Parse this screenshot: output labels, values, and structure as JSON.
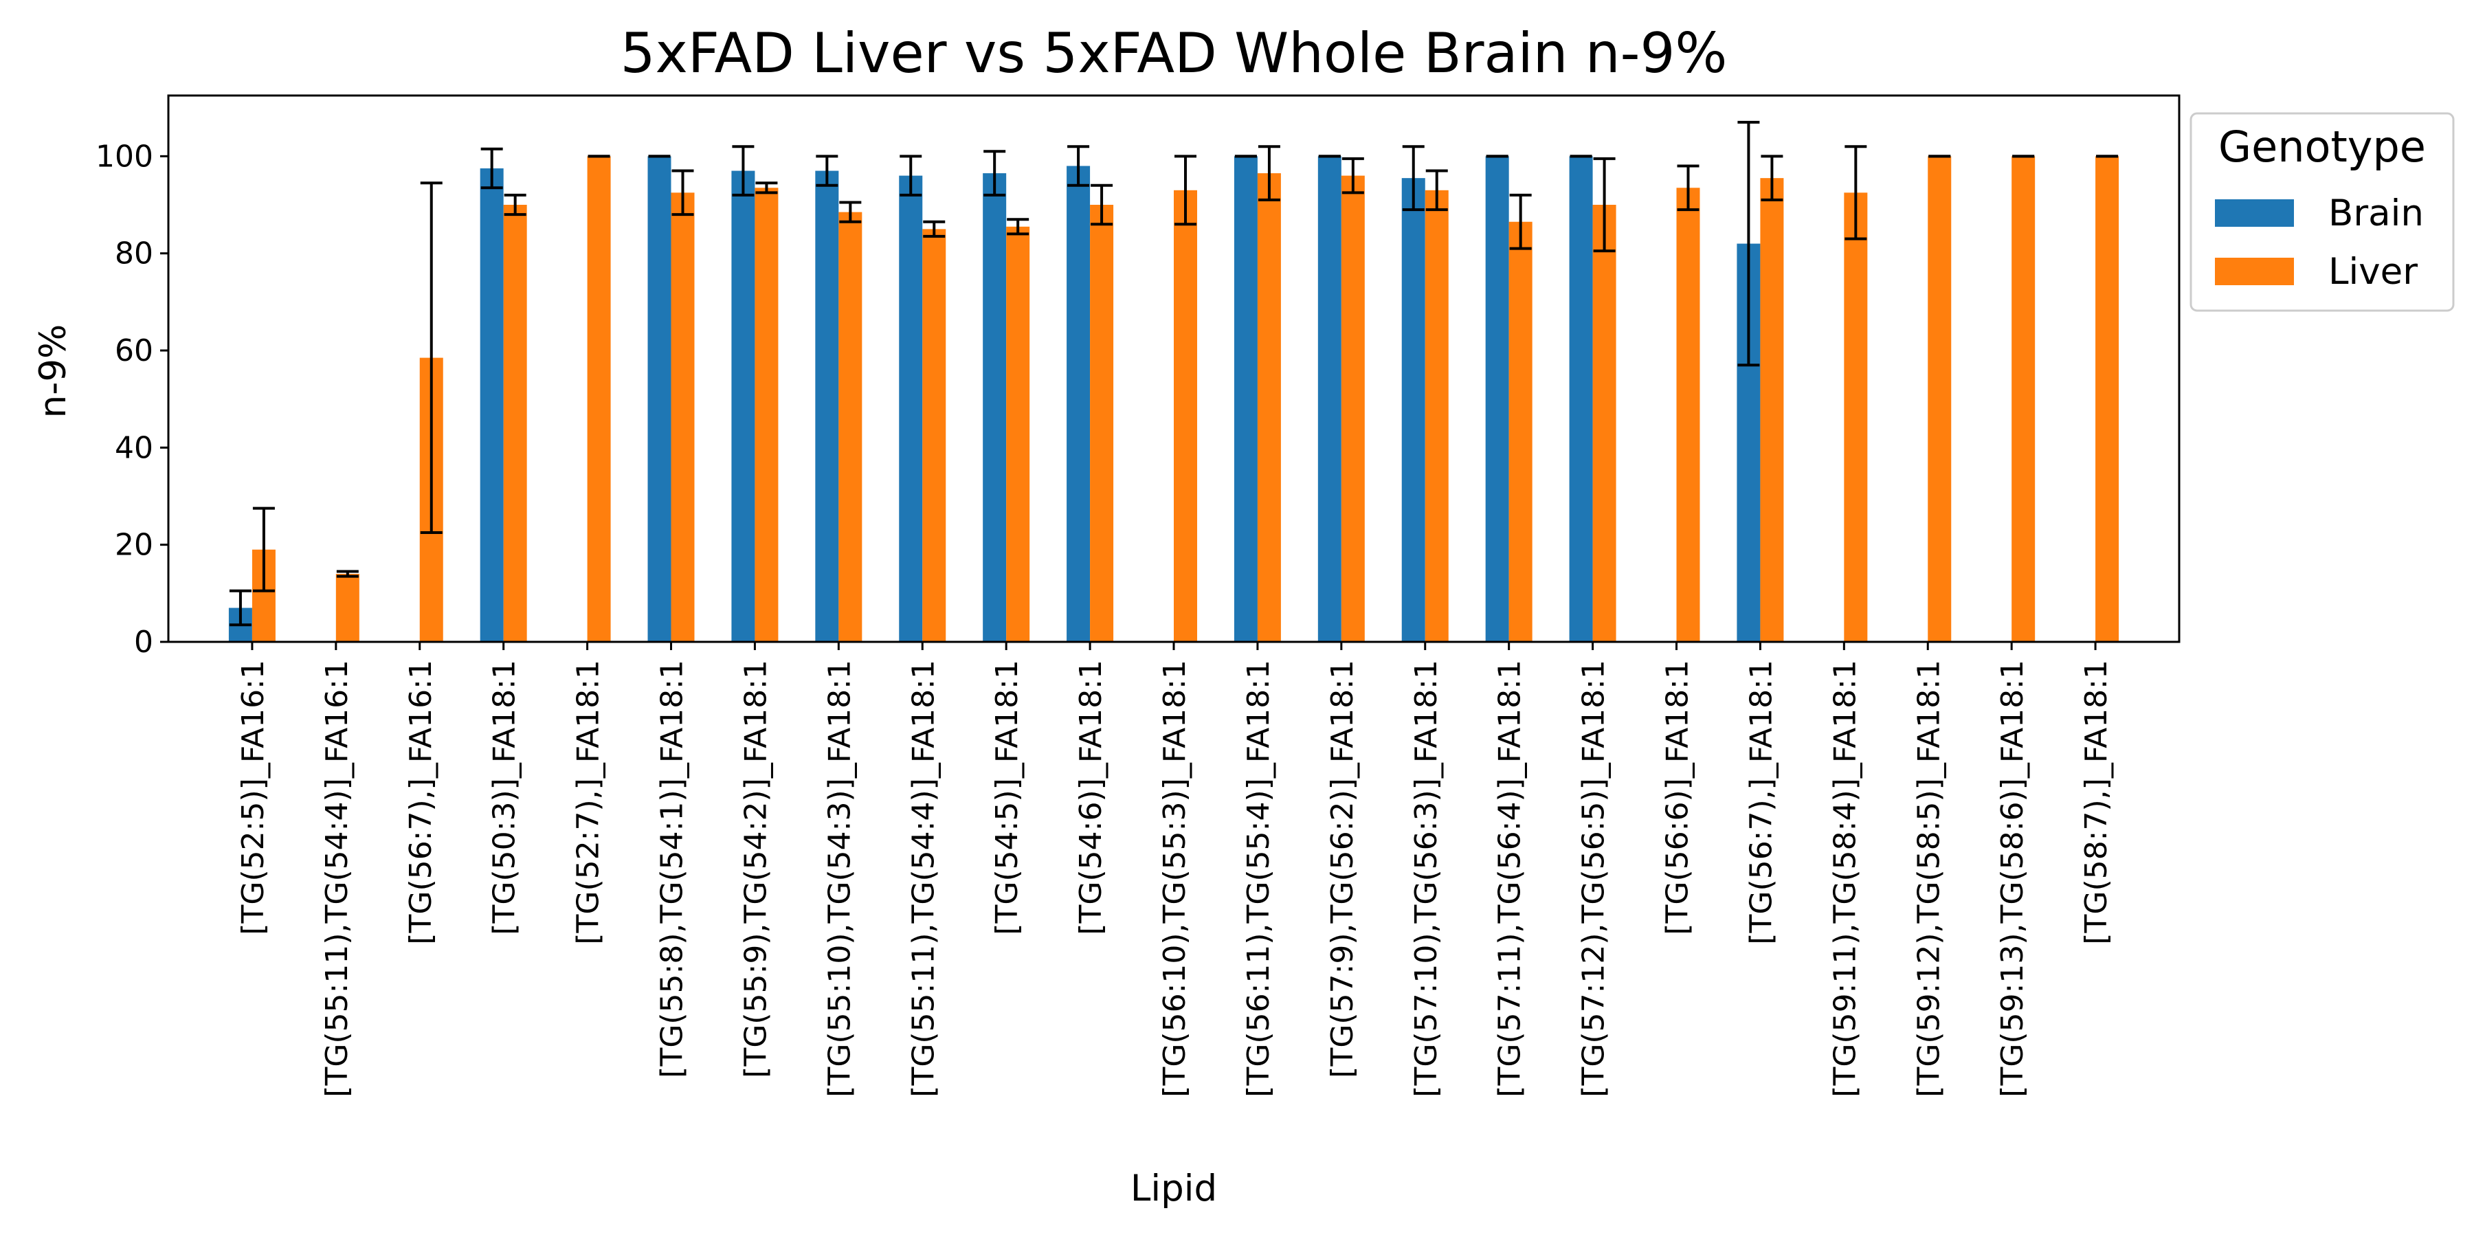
{
  "chart_data": {
    "type": "bar",
    "title": "5xFAD Liver vs 5xFAD Whole Brain n-9%",
    "xlabel": "Lipid",
    "ylabel": "n-9%",
    "ylim": [
      0,
      112.5
    ],
    "yticks": [
      0,
      20,
      40,
      60,
      80,
      100
    ],
    "grid": false,
    "legend": {
      "title": "Genotype",
      "placement": "outside-right-top"
    },
    "categories": [
      "[TG(52:5)]_FA16:1",
      "[TG(55:11),TG(54:4)]_FA16:1",
      "[TG(56:7),]_FA16:1",
      "[TG(50:3)]_FA18:1",
      "[TG(52:7),]_FA18:1",
      "[TG(55:8),TG(54:1)]_FA18:1",
      "[TG(55:9),TG(54:2)]_FA18:1",
      "[TG(55:10),TG(54:3)]_FA18:1",
      "[TG(55:11),TG(54:4)]_FA18:1",
      "[TG(54:5)]_FA18:1",
      "[TG(54:6)]_FA18:1",
      "[TG(56:10),TG(55:3)]_FA18:1",
      "[TG(56:11),TG(55:4)]_FA18:1",
      "[TG(57:9),TG(56:2)]_FA18:1",
      "[TG(57:10),TG(56:3)]_FA18:1",
      "[TG(57:11),TG(56:4)]_FA18:1",
      "[TG(57:12),TG(56:5)]_FA18:1",
      "[TG(56:6)]_FA18:1",
      "[TG(56:7),]_FA18:1",
      "[TG(59:11),TG(58:4)]_FA18:1",
      "[TG(59:12),TG(58:5)]_FA18:1",
      "[TG(59:13),TG(58:6)]_FA18:1",
      "[TG(58:7),]_FA18:1"
    ],
    "series": [
      {
        "name": "Brain",
        "color": "#1f77b4",
        "values": [
          7,
          null,
          null,
          97.5,
          null,
          100,
          97,
          97,
          96,
          96.5,
          98,
          null,
          100,
          100,
          95.5,
          100,
          100,
          null,
          82,
          null,
          null,
          null,
          null
        ],
        "errors": [
          3.5,
          null,
          null,
          4,
          null,
          0,
          5,
          3,
          4,
          4.5,
          4,
          null,
          0,
          0,
          6.5,
          0,
          0,
          null,
          25,
          null,
          null,
          null,
          null
        ]
      },
      {
        "name": "Liver",
        "color": "#ff7f0e",
        "values": [
          19,
          14,
          58.5,
          90,
          100,
          92.5,
          93.5,
          88.5,
          85,
          85.5,
          90,
          93,
          96.5,
          96,
          93,
          86.5,
          90,
          93.5,
          95.5,
          92.5,
          100,
          100,
          100
        ],
        "errors": [
          8.5,
          0.5,
          36,
          2,
          0,
          4.5,
          1,
          2,
          1.5,
          1.5,
          4,
          7,
          5.5,
          3.5,
          4,
          5.5,
          9.5,
          4.5,
          4.5,
          9.5,
          0,
          0,
          0
        ]
      }
    ]
  }
}
